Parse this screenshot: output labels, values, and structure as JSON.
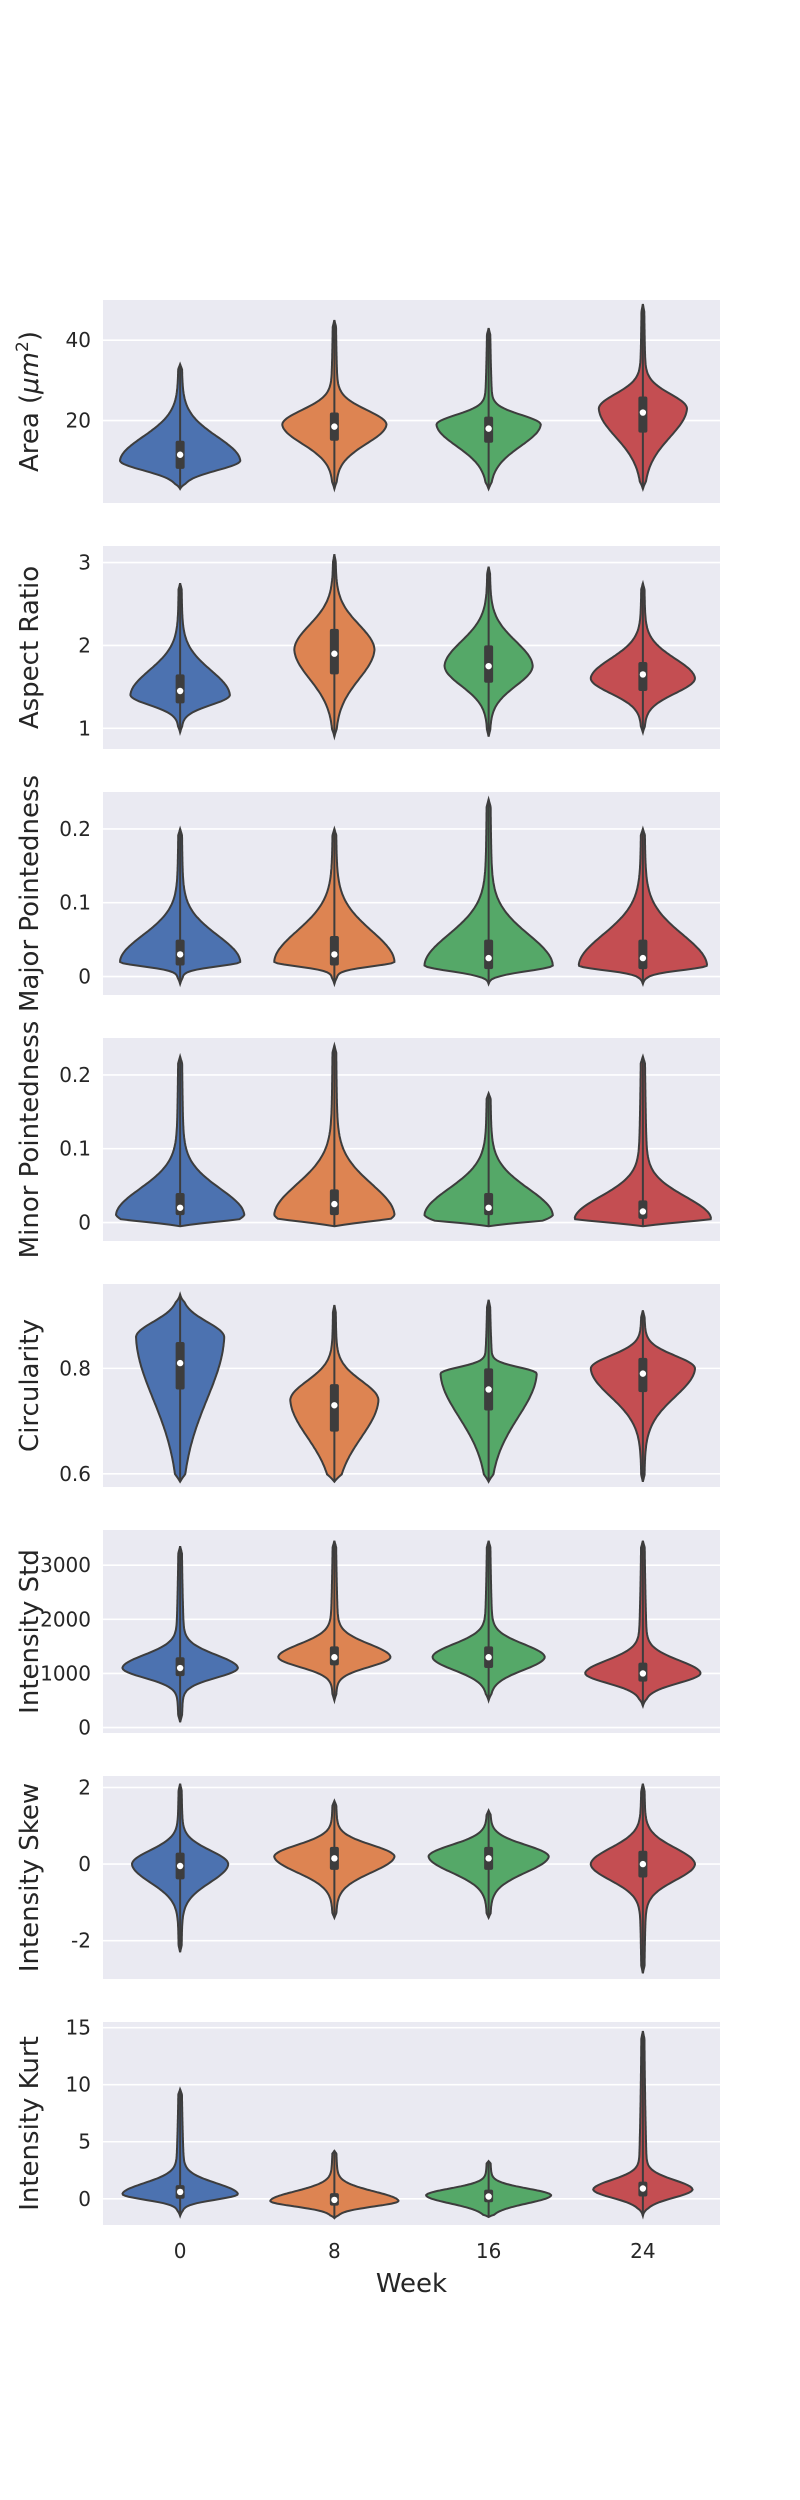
{
  "chart_data": {
    "type": "violin",
    "categories": [
      "0",
      "8",
      "16",
      "24"
    ],
    "xlabel": "Week",
    "colors": [
      "#4c72b0",
      "#dd8452",
      "#55a868",
      "#c44e52"
    ],
    "background": "#eaeaf2",
    "grid": true,
    "panels": [
      {
        "ylabel": "Area ($\\mu m^2$)",
        "ylabel_parts": [
          "Area (",
          "μm",
          "2",
          ")"
        ],
        "ylim": [
          -0.5,
          50
        ],
        "yticks": [
          20,
          40
        ],
        "violins": [
          {
            "min": 3,
            "q1": 8,
            "median": 11.5,
            "q3": 15,
            "max": 34,
            "peak": 10,
            "peak_width": 0.75
          },
          {
            "min": 3,
            "q1": 15,
            "median": 18.5,
            "q3": 22,
            "max": 45,
            "peak": 19,
            "peak_width": 0.65
          },
          {
            "min": 3,
            "q1": 14.5,
            "median": 18,
            "q3": 21,
            "max": 43,
            "peak": 19,
            "peak_width": 0.65
          },
          {
            "min": 3,
            "q1": 17,
            "median": 22,
            "q3": 26,
            "max": 49,
            "peak": 23,
            "peak_width": 0.55
          }
        ]
      },
      {
        "ylabel": "Aspect Ratio",
        "ylim": [
          0.75,
          3.2
        ],
        "yticks": [
          1,
          2,
          3
        ],
        "violins": [
          {
            "min": 0.95,
            "q1": 1.3,
            "median": 1.45,
            "q3": 1.65,
            "max": 2.75,
            "peak": 1.4,
            "peak_width": 0.62
          },
          {
            "min": 0.9,
            "q1": 1.65,
            "median": 1.9,
            "q3": 2.2,
            "max": 3.1,
            "peak": 1.95,
            "peak_width": 0.5
          },
          {
            "min": 0.9,
            "q1": 1.55,
            "median": 1.75,
            "q3": 2.0,
            "max": 2.95,
            "peak": 1.75,
            "peak_width": 0.55
          },
          {
            "min": 0.95,
            "q1": 1.45,
            "median": 1.65,
            "q3": 1.8,
            "max": 2.75,
            "peak": 1.6,
            "peak_width": 0.65
          }
        ]
      },
      {
        "ylabel": "Major Pointedness",
        "ylim": [
          -0.025,
          0.25
        ],
        "yticks": [
          0.0,
          0.1,
          0.2
        ],
        "violins": [
          {
            "min": -0.01,
            "q1": 0.015,
            "median": 0.03,
            "q3": 0.05,
            "max": 0.2,
            "peak": 0.02,
            "peak_width": 0.75
          },
          {
            "min": -0.01,
            "q1": 0.015,
            "median": 0.03,
            "q3": 0.055,
            "max": 0.2,
            "peak": 0.02,
            "peak_width": 0.75
          },
          {
            "min": -0.01,
            "q1": 0.01,
            "median": 0.025,
            "q3": 0.05,
            "max": 0.24,
            "peak": 0.015,
            "peak_width": 0.8
          },
          {
            "min": -0.01,
            "q1": 0.01,
            "median": 0.025,
            "q3": 0.05,
            "max": 0.2,
            "peak": 0.015,
            "peak_width": 0.8
          }
        ]
      },
      {
        "ylabel": "Minor Pointedness",
        "ylim": [
          -0.025,
          0.25
        ],
        "yticks": [
          0.0,
          0.1,
          0.2
        ],
        "violins": [
          {
            "min": -0.005,
            "q1": 0.01,
            "median": 0.02,
            "q3": 0.04,
            "max": 0.225,
            "peak": 0.01,
            "peak_width": 0.8
          },
          {
            "min": -0.005,
            "q1": 0.01,
            "median": 0.025,
            "q3": 0.045,
            "max": 0.24,
            "peak": 0.01,
            "peak_width": 0.75
          },
          {
            "min": -0.005,
            "q1": 0.01,
            "median": 0.02,
            "q3": 0.04,
            "max": 0.175,
            "peak": 0.01,
            "peak_width": 0.8
          },
          {
            "min": -0.005,
            "q1": 0.005,
            "median": 0.015,
            "q3": 0.03,
            "max": 0.225,
            "peak": 0.005,
            "peak_width": 0.85
          }
        ]
      },
      {
        "ylabel": "Circularity",
        "ylim": [
          0.575,
          0.96
        ],
        "yticks": [
          0.6,
          0.8
        ],
        "violins": [
          {
            "min": 0.585,
            "q1": 0.76,
            "median": 0.81,
            "q3": 0.85,
            "max": 0.94,
            "peak": 0.86,
            "peak_width": 0.55
          },
          {
            "min": 0.585,
            "q1": 0.68,
            "median": 0.73,
            "q3": 0.77,
            "max": 0.92,
            "peak": 0.74,
            "peak_width": 0.55
          },
          {
            "min": 0.585,
            "q1": 0.72,
            "median": 0.76,
            "q3": 0.8,
            "max": 0.93,
            "peak": 0.79,
            "peak_width": 0.6
          },
          {
            "min": 0.585,
            "q1": 0.755,
            "median": 0.79,
            "q3": 0.82,
            "max": 0.91,
            "peak": 0.8,
            "peak_width": 0.65
          }
        ]
      },
      {
        "ylabel": "Intensity Std",
        "ylim": [
          -100,
          3650
        ],
        "yticks": [
          0,
          1000,
          2000,
          3000
        ],
        "violins": [
          {
            "min": 100,
            "q1": 950,
            "median": 1100,
            "q3": 1300,
            "max": 3350,
            "peak": 1100,
            "peak_width": 0.72
          },
          {
            "min": 500,
            "q1": 1150,
            "median": 1300,
            "q3": 1500,
            "max": 3450,
            "peak": 1300,
            "peak_width": 0.7
          },
          {
            "min": 500,
            "q1": 1100,
            "median": 1300,
            "q3": 1500,
            "max": 3450,
            "peak": 1300,
            "peak_width": 0.7
          },
          {
            "min": 400,
            "q1": 850,
            "median": 1000,
            "q3": 1200,
            "max": 3450,
            "peak": 1000,
            "peak_width": 0.72
          }
        ]
      },
      {
        "ylabel": "Intensity Skew",
        "ylim": [
          -3.0,
          2.3
        ],
        "yticks": [
          -2,
          0,
          2
        ],
        "violins": [
          {
            "min": -2.3,
            "q1": -0.4,
            "median": -0.05,
            "q3": 0.3,
            "max": 2.1,
            "peak": 0.0,
            "peak_width": 0.6
          },
          {
            "min": -1.4,
            "q1": -0.15,
            "median": 0.15,
            "q3": 0.45,
            "max": 1.65,
            "peak": 0.2,
            "peak_width": 0.75
          },
          {
            "min": -1.4,
            "q1": -0.15,
            "median": 0.15,
            "q3": 0.45,
            "max": 1.4,
            "peak": 0.2,
            "peak_width": 0.75
          },
          {
            "min": -2.85,
            "q1": -0.35,
            "median": 0.0,
            "q3": 0.35,
            "max": 2.1,
            "peak": 0.0,
            "peak_width": 0.65
          }
        ]
      },
      {
        "ylabel": "Intensity Kurt",
        "ylim": [
          -2.3,
          15.5
        ],
        "yticks": [
          0,
          5,
          10,
          15
        ],
        "violins": [
          {
            "min": -1.5,
            "q1": 0.0,
            "median": 0.6,
            "q3": 1.2,
            "max": 9.6,
            "peak": 0.4,
            "peak_width": 0.72
          },
          {
            "min": -1.7,
            "q1": -0.6,
            "median": -0.1,
            "q3": 0.5,
            "max": 4.2,
            "peak": -0.2,
            "peak_width": 0.8
          },
          {
            "min": -1.6,
            "q1": -0.3,
            "median": 0.2,
            "q3": 0.8,
            "max": 3.3,
            "peak": 0.3,
            "peak_width": 0.78
          },
          {
            "min": -1.5,
            "q1": 0.2,
            "median": 0.9,
            "q3": 1.5,
            "max": 14.7,
            "peak": 0.8,
            "peak_width": 0.62
          }
        ]
      }
    ]
  }
}
